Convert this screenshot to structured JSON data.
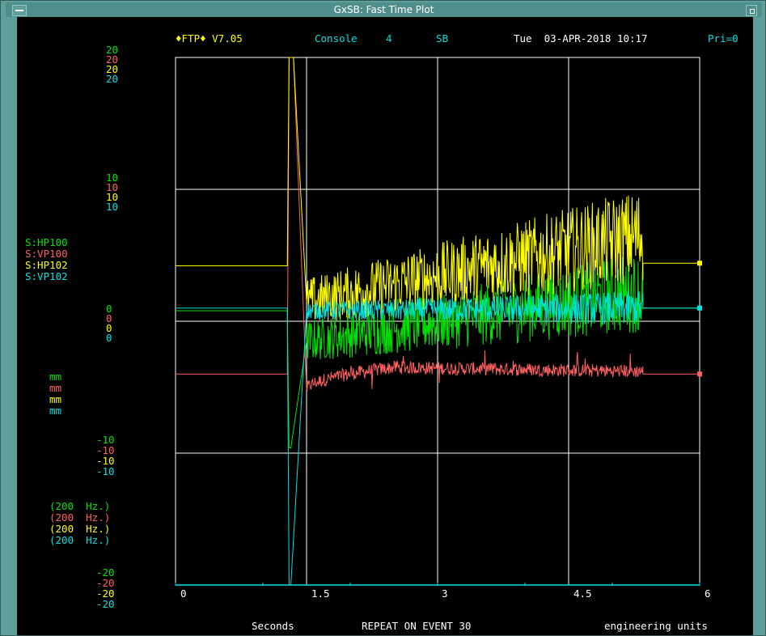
{
  "window": {
    "title": "GxSB: Fast Time Plot"
  },
  "colors": {
    "green": "#00e400",
    "red": "#ff6060",
    "yellow": "#ffff00",
    "cyan": "#00e0e0",
    "grid": "#ffffff"
  },
  "header": {
    "program": "♦FTP♦ V7.05",
    "console_label": "Console",
    "console_number": "4",
    "subsystem": "SB",
    "datetime": "Tue  03-APR-2018 10:17",
    "priority": "Pri=0"
  },
  "left_axis": {
    "top": [
      "20",
      "20",
      "20",
      "20"
    ],
    "ten": [
      "10",
      "10",
      "10",
      "10"
    ],
    "zero": [
      "0",
      "0",
      "0",
      "0"
    ],
    "neg_ten": [
      "-10",
      "-10",
      "-10",
      "-10"
    ],
    "neg_twenty": [
      "-20",
      "-20",
      "-20",
      "-20"
    ],
    "units": [
      "mm",
      "mm",
      "mm",
      "mm"
    ],
    "rates": [
      "(200  Hz.)",
      "(200  Hz.)",
      "(200  Hz.)",
      "(200  Hz.)"
    ]
  },
  "series_names": [
    "S:HP100",
    "S:VP100",
    "S:HP102",
    "S:VP102"
  ],
  "footer": {
    "xlabel": "Seconds",
    "event": "REPEAT ON EVENT 30",
    "units": "engineering units"
  },
  "chart_data": {
    "type": "line",
    "xlim": [
      0,
      6
    ],
    "ylim": [
      -20,
      20
    ],
    "x_ticks": [
      "0",
      "1.5",
      "3",
      "4.5",
      "6"
    ],
    "grid": true,
    "series": [
      {
        "name": "S:HP100",
        "color": "#00e400",
        "pre_value": 0.8,
        "spike_x": 1.3,
        "spike_min": -9.6,
        "trace_start": [
          1.5,
          -1.5
        ],
        "trace_end": [
          5.35,
          2.3
        ],
        "noise": 2.6,
        "end_value": 1.0
      },
      {
        "name": "S:VP100",
        "color": "#ff6060",
        "pre_value": -4.0,
        "spike_x": 1.3,
        "spike_max": 20.0,
        "trace_start": [
          1.5,
          -5.2
        ],
        "trace_peak": [
          2.5,
          -3.5
        ],
        "trace_end": [
          5.35,
          -3.8
        ],
        "noise": 0.5,
        "end_value": -4.0
      },
      {
        "name": "S:HP102",
        "color": "#ffff00",
        "pre_value": 4.2,
        "spike_x": 1.3,
        "spike_max": 20.0,
        "trace_start": [
          1.5,
          1.5
        ],
        "trace_end": [
          5.35,
          6.5
        ],
        "noise": 3.0,
        "end_value": 4.4
      },
      {
        "name": "S:VP102",
        "color": "#00e0e0",
        "pre_value": 1.0,
        "spike_x": 1.3,
        "spike_min": -20.0,
        "trace_start": [
          1.5,
          0.8
        ],
        "trace_end": [
          5.35,
          1.0
        ],
        "noise": 1.1,
        "end_value": 1.0
      }
    ]
  }
}
